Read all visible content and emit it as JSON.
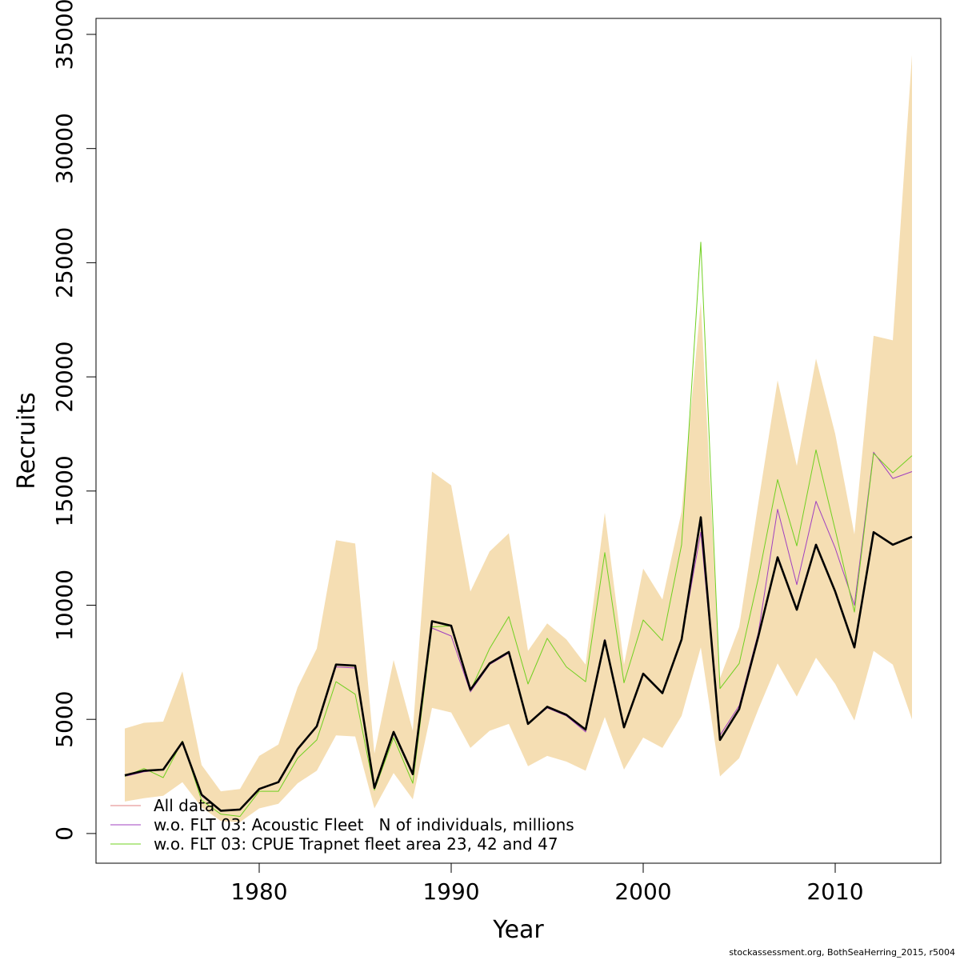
{
  "chart_data": {
    "type": "line",
    "xlabel": "Year",
    "ylabel": "Recruits",
    "xlim": [
      1971.5,
      2015.5
    ],
    "ylim": [
      -1300,
      35700
    ],
    "x_ticks": [
      1980,
      1990,
      2000,
      2010
    ],
    "y_ticks": [
      0,
      5000,
      10000,
      15000,
      20000,
      25000,
      30000,
      35000
    ],
    "grid": false,
    "legend_position": "bottom-left",
    "years": [
      1973,
      1974,
      1975,
      1976,
      1977,
      1978,
      1979,
      1980,
      1981,
      1982,
      1983,
      1984,
      1985,
      1986,
      1987,
      1988,
      1989,
      1990,
      1991,
      1992,
      1993,
      1994,
      1995,
      1996,
      1997,
      1998,
      1999,
      2000,
      2001,
      2002,
      2003,
      2004,
      2005,
      2006,
      2007,
      2008,
      2009,
      2010,
      2011,
      2012,
      2013,
      2014
    ],
    "band": {
      "color": "#f5deb3",
      "upper": [
        4600,
        4850,
        4900,
        7100,
        3000,
        1850,
        1950,
        3400,
        3900,
        6400,
        8100,
        12850,
        12700,
        3500,
        7600,
        4500,
        15850,
        15250,
        10600,
        12350,
        13150,
        8000,
        9200,
        8500,
        7400,
        14050,
        7400,
        11600,
        10250,
        14100,
        23300,
        6800,
        9050,
        14500,
        19850,
        16100,
        20800,
        17500,
        13100,
        21800,
        21600,
        34100
      ],
      "lower": [
        1400,
        1550,
        1650,
        2250,
        1150,
        550,
        500,
        1100,
        1300,
        2200,
        2750,
        4300,
        4250,
        1100,
        2650,
        1500,
        5500,
        5300,
        3750,
        4500,
        4800,
        2950,
        3400,
        3150,
        2750,
        5100,
        2800,
        4200,
        3750,
        5150,
        8150,
        2500,
        3300,
        5450,
        7450,
        6000,
        7700,
        6550,
        4950,
        8000,
        7400,
        5000
      ]
    },
    "series": [
      {
        "name": "All data",
        "color": "#e08080",
        "values": [
          2550,
          2750,
          2800,
          4000,
          1700,
          1000,
          1050,
          1950,
          2250,
          3700,
          4700,
          7400,
          7350,
          2000,
          4450,
          2600,
          9300,
          9100,
          6300,
          7450,
          7950,
          4800,
          5550,
          5200,
          4550,
          8450,
          4650,
          7000,
          6150,
          8500,
          13850,
          4100,
          5450,
          8650,
          12100,
          9800,
          12650,
          10600,
          8150,
          13200,
          12650,
          13000
        ]
      },
      {
        "name": "w.o. FLT 03: Acoustic Fleet   N of individuals, millions",
        "color": "#a040c0",
        "values": [
          2500,
          2700,
          2800,
          3950,
          1650,
          1000,
          1050,
          1950,
          2250,
          3700,
          4700,
          7300,
          7250,
          2000,
          4400,
          2600,
          9000,
          8650,
          6200,
          7400,
          7900,
          4800,
          5500,
          5150,
          4450,
          8500,
          4650,
          7000,
          6150,
          8500,
          13200,
          4300,
          5600,
          8800,
          14200,
          10900,
          14550,
          12500,
          10000,
          16700,
          15550,
          15850
        ]
      },
      {
        "name": "w.o. FLT 03: CPUE Trapnet fleet area 23, 42 and 47",
        "color": "#70d020",
        "values": [
          2500,
          2850,
          2450,
          4050,
          1450,
          850,
          750,
          1850,
          1850,
          3300,
          4100,
          6650,
          6100,
          1900,
          4200,
          2200,
          9050,
          9100,
          6250,
          8100,
          9500,
          6550,
          8550,
          7300,
          6650,
          12300,
          6600,
          9350,
          8450,
          12650,
          25900,
          6350,
          7450,
          11200,
          15500,
          12600,
          16800,
          13300,
          9700,
          16650,
          15800,
          16550
        ]
      },
      {
        "name": "",
        "color": "#000000",
        "values": [
          2550,
          2750,
          2800,
          4000,
          1700,
          1000,
          1050,
          1950,
          2250,
          3700,
          4700,
          7400,
          7350,
          2000,
          4450,
          2600,
          9300,
          9100,
          6300,
          7450,
          7950,
          4800,
          5550,
          5200,
          4550,
          8450,
          4650,
          7000,
          6150,
          8500,
          13850,
          4100,
          5450,
          8650,
          12100,
          9800,
          12650,
          10600,
          8150,
          13200,
          12650,
          13000
        ]
      }
    ]
  },
  "footer": {
    "note": "stockassessment.org, BothSeaHerring_2015, r5004"
  }
}
